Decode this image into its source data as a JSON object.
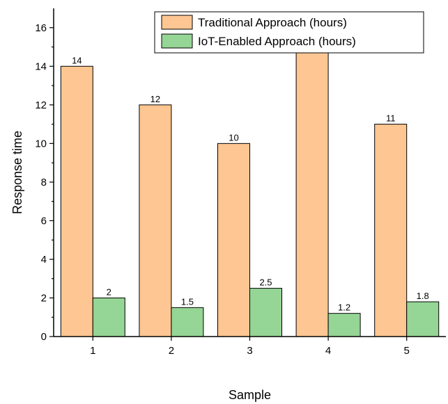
{
  "chart_data": {
    "type": "bar",
    "categories": [
      "1",
      "2",
      "3",
      "4",
      "5"
    ],
    "series": [
      {
        "name": "Traditional Approach (hours)",
        "values": [
          14,
          12,
          10,
          15,
          11
        ],
        "labels": [
          "14",
          "12",
          "10",
          "15",
          "11"
        ],
        "color": "#fdc692"
      },
      {
        "name": "IoT-Enabled Approach (hours)",
        "values": [
          2,
          1.5,
          2.5,
          1.2,
          1.8
        ],
        "labels": [
          "2",
          "1.5",
          "2.5",
          "1.2",
          "1.8"
        ],
        "color": "#95d595"
      }
    ],
    "xlabel": "Sample",
    "ylabel": "Response time",
    "ylim": [
      0,
      17
    ],
    "yticks": [
      0,
      2,
      4,
      6,
      8,
      10,
      12,
      14,
      16
    ],
    "legend_position": "top-right",
    "grid": false
  }
}
